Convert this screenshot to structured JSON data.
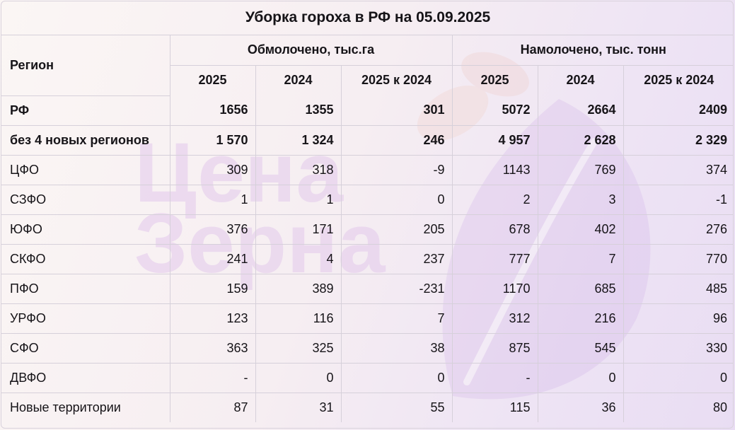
{
  "title": "Уборка гороха в РФ на 05.09.2025",
  "header": {
    "region": "Регион",
    "group1": "Обмолочено, тыс.га",
    "group2": "Намолочено, тыс. тонн",
    "years": [
      "2025",
      "2024",
      "2025 к 2024",
      "2025",
      "2024",
      "2025 к 2024"
    ]
  },
  "rows": [
    {
      "name": "РФ",
      "bold": true,
      "v": [
        "1656",
        "1355",
        "301",
        "5072",
        "2664",
        "2409"
      ]
    },
    {
      "name": "без 4 новых регионов",
      "bold": true,
      "v": [
        "1 570",
        "1 324",
        "246",
        "4 957",
        "2 628",
        "2 329"
      ]
    },
    {
      "name": "ЦФО",
      "v": [
        "309",
        "318",
        "-9",
        "1143",
        "769",
        "374"
      ]
    },
    {
      "name": "СЗФО",
      "v": [
        "1",
        "1",
        "0",
        "2",
        "3",
        "-1"
      ]
    },
    {
      "name": "ЮФО",
      "v": [
        "376",
        "171",
        "205",
        "678",
        "402",
        "276"
      ]
    },
    {
      "name": "СКФО",
      "v": [
        "241",
        "4",
        "237",
        "777",
        "7",
        "770"
      ]
    },
    {
      "name": "ПФО",
      "v": [
        "159",
        "389",
        "-231",
        "1170",
        "685",
        "485"
      ]
    },
    {
      "name": "УРФО",
      "v": [
        "123",
        "116",
        "7",
        "312",
        "216",
        "96"
      ]
    },
    {
      "name": "СФО",
      "v": [
        "363",
        "325",
        "38",
        "875",
        "545",
        "330"
      ]
    },
    {
      "name": "ДВФО",
      "v": [
        "-",
        "0",
        "0",
        "-",
        "0",
        "0"
      ]
    },
    {
      "name": "Новые территории",
      "v": [
        "87",
        "31",
        "55",
        "115",
        "36",
        "80"
      ]
    }
  ],
  "watermark": {
    "line1": "Цена",
    "line2": "Зерна",
    "icon": "grain-leaf-logo"
  }
}
